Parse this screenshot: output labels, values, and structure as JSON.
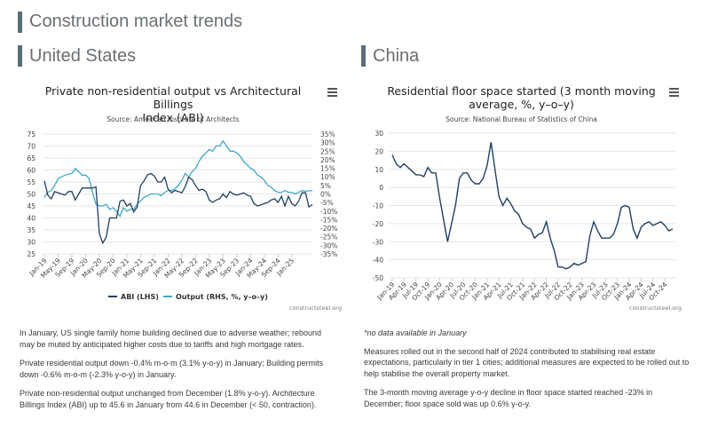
{
  "page": {
    "title": "Construction market trends",
    "us_heading": "United States",
    "china_heading": "China"
  },
  "us_chart": {
    "title_line1": "Private non-residential output vs Architectural Billings",
    "title_line2": "Index (ABI)",
    "source": "Source: American Institute of Architects",
    "credit": "constructsteel.org",
    "left_ticks": [
      "75",
      "70",
      "65",
      "60",
      "55",
      "50",
      "45",
      "40",
      "35",
      "30",
      "25"
    ],
    "right_ticks": [
      "35%",
      "30%",
      "25%",
      "20%",
      "15%",
      "10%",
      "5%",
      "0%",
      "-5%",
      "-10%",
      "-15%",
      "-20%",
      "-25%",
      "-30%",
      "-35%"
    ],
    "x_ticks": [
      "Jan-19",
      "May-19",
      "Sep-19",
      "Jan-20",
      "May-20",
      "Sep-20",
      "Jan-21",
      "May-21",
      "Sep-21",
      "Jan-22",
      "May-22",
      "Sep-22",
      "Jan-23",
      "May-23",
      "Sep-23",
      "Jan-24",
      "May-24",
      "Sep-24",
      "Jan-25"
    ],
    "legend_abi": "ABI (LHS)",
    "legend_output": "Output (RHS, %, y–o–y)"
  },
  "china_chart": {
    "title_line1": "Residential floor space started (3 month moving",
    "title_line2": "average, %, y–o–y)",
    "source": "Source: National Bureau of Statistics of China",
    "credit": "constructsteel.org",
    "y_ticks": [
      "30",
      "20",
      "10",
      "0",
      "-10",
      "-20",
      "-30",
      "-40",
      "-50"
    ],
    "x_ticks": [
      "Jan-19",
      "Apr-19",
      "Jul-19",
      "Oct-19",
      "Jan-20",
      "Apr-20",
      "Jul-20",
      "Oct-20",
      "Jan-21",
      "Apr-21",
      "Jul-21",
      "Oct-21",
      "Jan-22",
      "Apr-22",
      "Jul-22",
      "Oct-22",
      "Jan-23",
      "Apr-23",
      "Jul-23",
      "Oct-23",
      "Jan-24",
      "Apr-24",
      "Jul-24",
      "Oct-24"
    ]
  },
  "text": {
    "us_p1": "In January, US single family home building declined due to adverse weather; rebound may be muted by anticipated higher costs due to tariffs and high mortgage rates.",
    "us_p2": "Private residential output down -0.4% m-o-m (3.1% y-o-y) in January; Building permits down -0.6% m-o-m (-2.3% y-o-y) in January.",
    "us_p3": "Private non-residential output unchanged from December (1.8% y-o-y). Architecture Billings Index (ABI) up to 45.6 in January from 44.6 in December (< 50, contraction).",
    "cn_p1": "*no data available in January",
    "cn_p2": "Measures rolled out in the second half of 2024 contributed to stabilising real estate expectations, particularly in tier 1 cities; additional measures are expected to be rolled out to help stabilise the overall property market.",
    "cn_p3": "The 3-month moving average y-o-y decline in floor space started reached -23% in December; floor space sold was up 0.6% y-o-y."
  },
  "colors": {
    "abi": "#1f3f63",
    "output": "#3fa8c9",
    "china": "#1f3f63",
    "grid": "#e6e6e6",
    "accent_bar": "#5a6e78"
  },
  "chart_data": [
    {
      "type": "line",
      "title": "Private non-residential output vs Architectural Billings Index (ABI)",
      "x_start": "Jan-19",
      "x_end": "Jan-25",
      "frequency": "monthly",
      "ylim_left": [
        25,
        75
      ],
      "ylim_right": [
        -35,
        35
      ],
      "series": [
        {
          "name": "ABI (LHS)",
          "axis": "left",
          "values": [
            55.5,
            49.5,
            48,
            51,
            50.5,
            50,
            49.5,
            51,
            51,
            47.5,
            50,
            52.5,
            52.5,
            52.5,
            52.5,
            53,
            33.5,
            29.5,
            32,
            40,
            40,
            40,
            47,
            47.5,
            45,
            46,
            42.5,
            44.5,
            53.5,
            55.5,
            58,
            58.5,
            57.5,
            55,
            55,
            57,
            52,
            50.5,
            51.5,
            51,
            50.5,
            53,
            57,
            56,
            53.5,
            51.5,
            52,
            51,
            47.5,
            46.5,
            47.5,
            48,
            50,
            48.5,
            51,
            50,
            49.5,
            50,
            50.5,
            49.5,
            49,
            46,
            45,
            45.5,
            46,
            46.5,
            47.5,
            48,
            46.5,
            49,
            45,
            49,
            46,
            45,
            47,
            50.5,
            50.5,
            44.6,
            45.6
          ]
        },
        {
          "name": "Output (RHS, %, y–o–y)",
          "axis": "right",
          "values": [
            -2,
            1,
            2,
            5,
            9,
            10,
            11,
            11.5,
            12,
            15,
            13,
            11,
            11,
            9,
            1,
            -6,
            -7,
            -7,
            -6,
            -9,
            -8,
            -10,
            -13,
            -8,
            -10,
            -9,
            -9,
            -6,
            -4,
            -2,
            -1,
            0,
            0,
            0,
            -1,
            1,
            2,
            2,
            3,
            5,
            8,
            12,
            10,
            13,
            15,
            19,
            22,
            24,
            26,
            25,
            28,
            28,
            31,
            28,
            25,
            25,
            24,
            22,
            19,
            17,
            15,
            14,
            11,
            10,
            8,
            5,
            4,
            2,
            1,
            1,
            2,
            1,
            1,
            0,
            1,
            2,
            1.5,
            2,
            1.8
          ]
        }
      ]
    },
    {
      "type": "line",
      "title": "Residential floor space started (3 month moving average, %, y–o–y)",
      "x_start": "Jan-19",
      "x_end": "Dec-24",
      "frequency": "monthly",
      "ylim": [
        -50,
        30
      ],
      "series": [
        {
          "name": "",
          "values": [
            18,
            13,
            11,
            13,
            11,
            9,
            7,
            7,
            6,
            11,
            8,
            8,
            -6,
            -18,
            -30,
            -20,
            -10,
            5,
            8,
            8,
            4,
            2,
            2,
            5,
            12,
            25,
            10,
            -5,
            -10,
            -6,
            -9,
            -13,
            -15,
            -20,
            -22,
            -23,
            -28,
            -26,
            -25,
            -19,
            -28,
            -35,
            -44,
            -44,
            -45,
            -44,
            -42,
            -43,
            -42,
            -41,
            -27,
            -19,
            -24,
            -28,
            -28,
            -28,
            -26,
            -20,
            -11,
            -10,
            -11,
            -23,
            -28,
            -22,
            -20,
            -19,
            -21,
            -20,
            -19,
            -21,
            -24,
            -23
          ]
        }
      ]
    }
  ]
}
